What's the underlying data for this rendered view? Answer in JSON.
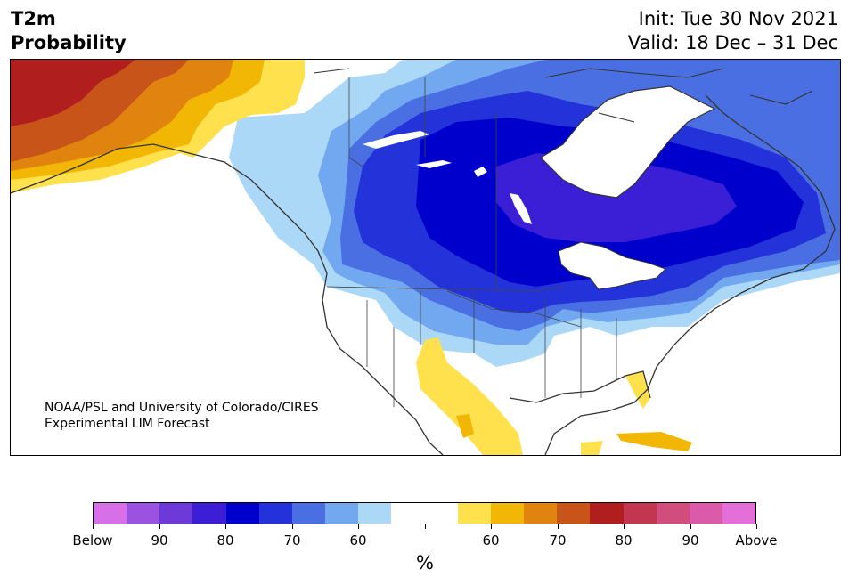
{
  "header": {
    "title_line1": "T2m",
    "title_line2": "Probability",
    "init": "Init: Tue 30 Nov 2021",
    "valid": "Valid: 18 Dec – 31 Dec"
  },
  "map": {
    "credit_line1": "NOAA/PSL and University of Colorado/CIRES",
    "credit_line2": "Experimental LIM Forecast",
    "region": "North America",
    "colors": {
      "below90": "#9b4fe0",
      "below80": "#3a1fd6",
      "below70": "#0000cc",
      "below65": "#2433d9",
      "below60": "#4a6fe3",
      "below55": "#71a8f0",
      "below50": "#acd8f7",
      "neutral": "#ffffff",
      "above50": "#ffe14d",
      "above55": "#f2b705",
      "above60": "#e0840f",
      "above65": "#c85419",
      "above70": "#b01e1e",
      "land_outline": "#333333",
      "lakes": "#ffffff"
    }
  },
  "colorbar": {
    "colors": [
      "#d770e8",
      "#9c52e0",
      "#6d39d8",
      "#3c1fd4",
      "#0000cc",
      "#2433d9",
      "#4a6fe3",
      "#71a8f0",
      "#acd8f7",
      "#ffffff",
      "#ffffff",
      "#ffe14d",
      "#f2b705",
      "#e0840f",
      "#c85419",
      "#b01e1e",
      "#c2374f",
      "#d14d7e",
      "#dc5aaa",
      "#e56fd9"
    ],
    "labels": [
      "Below",
      "90",
      "80",
      "70",
      "60",
      "",
      "60",
      "70",
      "80",
      "90",
      "Above"
    ],
    "unit": "%"
  }
}
